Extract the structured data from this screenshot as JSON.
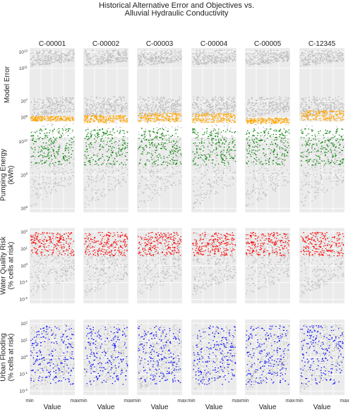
{
  "chart_data": {
    "type": "scatter",
    "title_lines": [
      "Historical Alternative Error and Objectives vs.",
      "Alluvial Hydraulic Conductivity"
    ],
    "columns": [
      "C-00001",
      "C-00002",
      "C-00003",
      "C-00004",
      "C-00005",
      "C-12345"
    ],
    "x_tick_labels": [
      "min",
      "max"
    ],
    "x_label": "Value",
    "grid": true,
    "background_series_color": "#bdbdbd",
    "rows": [
      {
        "label_lines": [
          "Model Error"
        ],
        "log_y": true,
        "y_ticks": [
          5,
          7,
          11,
          13
        ],
        "highlight_color": "#ffa500",
        "grey_band_y": [
          [
            5.0,
            7.6
          ],
          [
            11.3,
            13.3
          ]
        ],
        "highlight_band_y": [
          [
            4.6,
            5.2
          ],
          [
            4.4,
            5.3
          ],
          [
            4.5,
            5.6
          ],
          [
            4.4,
            5.6
          ],
          [
            4.3,
            5.0
          ],
          [
            4.6,
            5.9
          ]
        ]
      },
      {
        "label_lines": [
          "Pumping Energy",
          "(kWh)"
        ],
        "log_y": true,
        "y_ticks": [
          8,
          9,
          10
        ],
        "highlight_color": "#008000",
        "grey_band_y": [
          [
            8.0,
            10.6
          ]
        ],
        "highlight_band_y": [
          [
            9.3,
            10.4
          ]
        ]
      },
      {
        "label_lines": [
          "Water Quality Risk",
          "(% cells at risk)"
        ],
        "log_y": true,
        "y_ticks": [
          -2,
          -1,
          0,
          1,
          2
        ],
        "highlight_color": "#ff0000",
        "grey_band_y": [
          [
            -1.8,
            2.0
          ]
        ],
        "highlight_band_y": [
          [
            0.6,
            2.0
          ]
        ]
      },
      {
        "label_lines": [
          "Urban Flooding",
          "(% cells at risk)"
        ],
        "log_y": true,
        "y_ticks": [
          -2,
          -1,
          0,
          1,
          2
        ],
        "highlight_color": "#0000ff",
        "grey_band_y": [
          [
            -2.0,
            2.0
          ]
        ],
        "highlight_band_y": [
          [
            -1.6,
            1.9
          ]
        ]
      }
    ]
  }
}
